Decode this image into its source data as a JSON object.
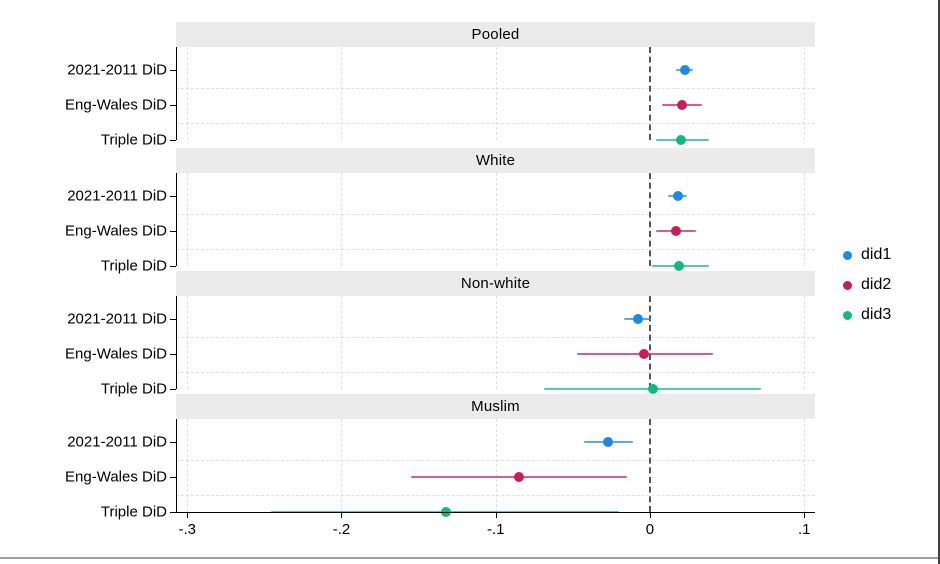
{
  "legend": {
    "items": [
      {
        "label": "did1",
        "color": "#1E88E5"
      },
      {
        "label": "did2",
        "color": "#C81E5E"
      },
      {
        "label": "did3",
        "color": "#10B981"
      }
    ]
  },
  "chart_data": {
    "type": "scatter",
    "subtype": "coefficient-plot",
    "title": "",
    "xlabel": "",
    "ylabel": "",
    "xlim": [
      -0.3073,
      0.107
    ],
    "x_ticks": [
      "-.3",
      "-.2",
      "-.1",
      "0",
      ".1"
    ],
    "x_tick_values": [
      -0.3,
      -0.2,
      -0.1,
      0,
      0.1
    ],
    "zero_line": 0,
    "grid": "dashed",
    "legend_position": "right",
    "row_labels": [
      "2021-2011 DiD",
      "Eng-Wales DiD",
      "Triple DiD"
    ],
    "series_names": [
      "did1",
      "did2",
      "did3"
    ],
    "panels": [
      {
        "title": "Pooled",
        "rows": [
          {
            "label": "2021-2011 DiD",
            "series": "did1",
            "estimate": 0.023,
            "ci_low": 0.017,
            "ci_high": 0.028
          },
          {
            "label": "Eng-Wales DiD",
            "series": "did2",
            "estimate": 0.021,
            "ci_low": 0.008,
            "ci_high": 0.034
          },
          {
            "label": "Triple DiD",
            "series": "did3",
            "estimate": 0.02,
            "ci_low": 0.004,
            "ci_high": 0.038
          }
        ]
      },
      {
        "title": "White",
        "rows": [
          {
            "label": "2021-2011 DiD",
            "series": "did1",
            "estimate": 0.018,
            "ci_low": 0.012,
            "ci_high": 0.024
          },
          {
            "label": "Eng-Wales DiD",
            "series": "did2",
            "estimate": 0.017,
            "ci_low": 0.004,
            "ci_high": 0.03
          },
          {
            "label": "Triple DiD",
            "series": "did3",
            "estimate": 0.019,
            "ci_low": 0.001,
            "ci_high": 0.038
          }
        ]
      },
      {
        "title": "Non-white",
        "rows": [
          {
            "label": "2021-2011 DiD",
            "series": "did1",
            "estimate": -0.008,
            "ci_low": -0.017,
            "ci_high": 0.001
          },
          {
            "label": "Eng-Wales DiD",
            "series": "did2",
            "estimate": -0.004,
            "ci_low": -0.047,
            "ci_high": 0.041
          },
          {
            "label": "Triple DiD",
            "series": "did3",
            "estimate": 0.002,
            "ci_low": -0.069,
            "ci_high": 0.072
          }
        ]
      },
      {
        "title": "Muslim",
        "rows": [
          {
            "label": "2021-2011 DiD",
            "series": "did1",
            "estimate": -0.027,
            "ci_low": -0.043,
            "ci_high": -0.011
          },
          {
            "label": "Eng-Wales DiD",
            "series": "did2",
            "estimate": -0.085,
            "ci_low": -0.155,
            "ci_high": -0.015
          },
          {
            "label": "Triple DiD",
            "series": "did3",
            "estimate": -0.132,
            "ci_low": -0.246,
            "ci_high": -0.02
          }
        ]
      }
    ]
  }
}
